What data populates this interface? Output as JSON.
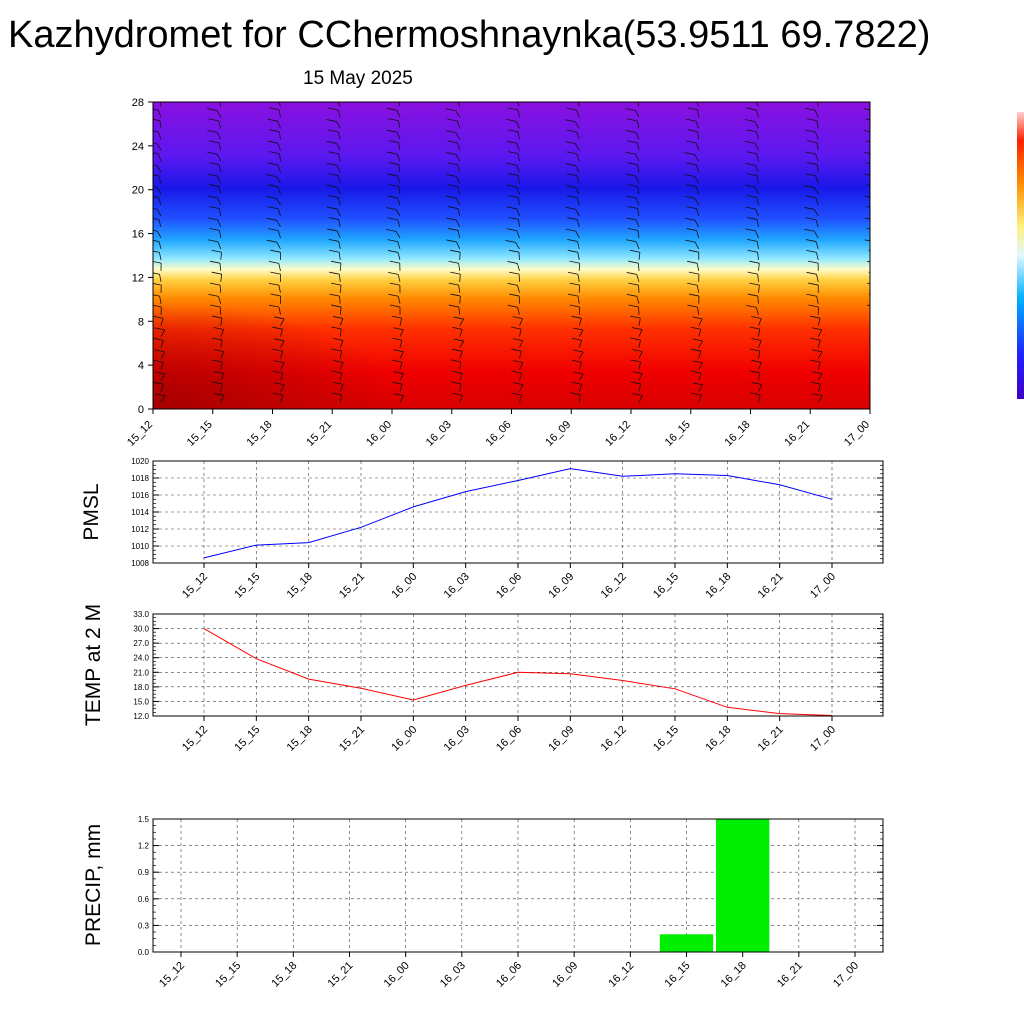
{
  "title": "Kazhydromet for CChermoshnaynka(53.9511 69.7822)",
  "subtitle": "15 May 2025",
  "colorbar": {
    "colors": [
      "#5a00a0",
      "#2020ff",
      "#00c8ff",
      "#fff8a0",
      "#ff9000",
      "#e00000"
    ]
  },
  "chart_data": [
    {
      "type": "heatmap",
      "title": "",
      "ylim": [
        0,
        28
      ],
      "y_ticks": [
        "0",
        "4",
        "8",
        "12",
        "16",
        "20",
        "24",
        "28"
      ],
      "categories": [
        "15_12",
        "15_15",
        "15_18",
        "15_21",
        "16_00",
        "16_03",
        "16_06",
        "16_09",
        "16_12",
        "16_15",
        "16_18",
        "16_21",
        "17_00"
      ],
      "color_bands": [
        {
          "y_from": 0,
          "y_to": 6,
          "color": "#e40000"
        },
        {
          "y_from": 6,
          "y_to": 11,
          "color": "#ff6000"
        },
        {
          "y_from": 11,
          "y_to": 13,
          "color": "#ffe070"
        },
        {
          "y_from": 13,
          "y_to": 16,
          "color": "#40c8ff"
        },
        {
          "y_from": 16,
          "y_to": 22,
          "color": "#2020ee"
        },
        {
          "y_from": 22,
          "y_to": 28,
          "color": "#7010e0"
        }
      ],
      "wind_barbs": true
    },
    {
      "type": "line",
      "ylabel": "PMSL",
      "ylim": [
        1008,
        1020
      ],
      "y_ticks": [
        "1008",
        "1010",
        "1012",
        "1014",
        "1016",
        "1018",
        "1020"
      ],
      "categories": [
        "15_12",
        "15_15",
        "15_18",
        "15_21",
        "16_00",
        "16_03",
        "16_06",
        "16_09",
        "16_12",
        "16_15",
        "16_18",
        "16_21",
        "17_00"
      ],
      "values": [
        1008.6,
        1010.1,
        1010.4,
        1012.2,
        1014.6,
        1016.4,
        1017.7,
        1019.1,
        1018.2,
        1018.5,
        1018.3,
        1017.2,
        1015.5
      ],
      "color": "#0000ff"
    },
    {
      "type": "line",
      "ylabel": "TEMP at 2 M",
      "ylim": [
        12.0,
        33.0
      ],
      "y_ticks": [
        "12.0",
        "15.0",
        "18.0",
        "21.0",
        "24.0",
        "27.0",
        "30.0",
        "33.0"
      ],
      "categories": [
        "15_12",
        "15_15",
        "15_18",
        "15_21",
        "16_00",
        "16_03",
        "16_06",
        "16_09",
        "16_12",
        "16_15",
        "16_18",
        "16_21",
        "17_00"
      ],
      "values": [
        30.0,
        23.8,
        19.6,
        17.7,
        15.3,
        18.3,
        21.0,
        20.7,
        19.3,
        17.6,
        13.8,
        12.5,
        12.1
      ],
      "color": "#ff0000"
    },
    {
      "type": "bar",
      "ylabel": "PRECIP, mm",
      "ylim": [
        0.0,
        1.5
      ],
      "y_ticks": [
        "0.0",
        "0.3",
        "0.6",
        "0.9",
        "1.2",
        "1.5"
      ],
      "categories": [
        "15_12",
        "15_15",
        "15_18",
        "15_21",
        "16_00",
        "16_03",
        "16_06",
        "16_09",
        "16_12",
        "16_15",
        "16_18",
        "16_21",
        "17_00"
      ],
      "values": [
        0,
        0,
        0,
        0,
        0,
        0,
        0,
        0,
        0,
        0.2,
        1.5,
        0,
        0
      ],
      "color": "#00ee00"
    }
  ]
}
